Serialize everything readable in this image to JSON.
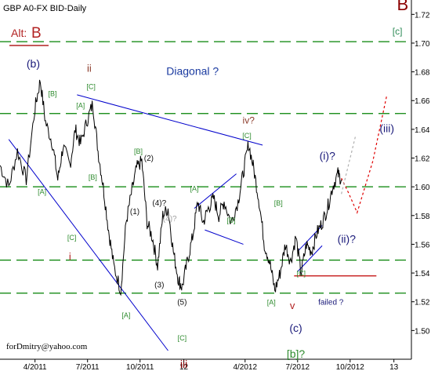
{
  "chart_data": {
    "type": "line",
    "title": "GBP A0-FX BID-Daily",
    "watermark": "forDmitry@yahoo.com",
    "y_axis": {
      "ylim": [
        1.48,
        1.73
      ],
      "ticks": [
        {
          "value": 1.72,
          "label": "1.72"
        },
        {
          "value": 1.7,
          "label": "1.70"
        },
        {
          "value": 1.68,
          "label": "1.68"
        },
        {
          "value": 1.66,
          "label": "1.66"
        },
        {
          "value": 1.64,
          "label": "1.64"
        },
        {
          "value": 1.62,
          "label": "1.62"
        },
        {
          "value": 1.6,
          "label": "1.60"
        },
        {
          "value": 1.58,
          "label": "1.58"
        },
        {
          "value": 1.56,
          "label": "1.56"
        },
        {
          "value": 1.54,
          "label": "1.54"
        },
        {
          "value": 1.52,
          "label": "1.52"
        },
        {
          "value": 1.5,
          "label": "1.50"
        }
      ]
    },
    "x_axis": {
      "xlim": [
        0,
        23.5
      ],
      "ticks": [
        {
          "value": 2.0,
          "label": "4/2011"
        },
        {
          "value": 5.0,
          "label": "7/2011"
        },
        {
          "value": 8.0,
          "label": "10/2011"
        },
        {
          "value": 10.5,
          "label": "12"
        },
        {
          "value": 14.0,
          "label": "4/2012"
        },
        {
          "value": 17.0,
          "label": "7/2012"
        },
        {
          "value": 20.0,
          "label": "10/2012"
        },
        {
          "value": 22.5,
          "label": "13"
        }
      ]
    },
    "price_path": [
      [
        0.0,
        1.615
      ],
      [
        0.5,
        1.6
      ],
      [
        1.0,
        1.625
      ],
      [
        1.5,
        1.605
      ],
      [
        2.0,
        1.655
      ],
      [
        2.3,
        1.674
      ],
      [
        2.6,
        1.645
      ],
      [
        3.0,
        1.63
      ],
      [
        3.3,
        1.605
      ],
      [
        3.6,
        1.628
      ],
      [
        4.0,
        1.615
      ],
      [
        4.3,
        1.64
      ],
      [
        4.6,
        1.63
      ],
      [
        5.0,
        1.647
      ],
      [
        5.3,
        1.658
      ],
      [
        5.6,
        1.625
      ],
      [
        5.9,
        1.6
      ],
      [
        6.2,
        1.57
      ],
      [
        6.5,
        1.545
      ],
      [
        6.9,
        1.528
      ],
      [
        7.2,
        1.575
      ],
      [
        7.5,
        1.595
      ],
      [
        7.8,
        1.613
      ],
      [
        8.1,
        1.618
      ],
      [
        8.4,
        1.575
      ],
      [
        8.7,
        1.565
      ],
      [
        9.0,
        1.545
      ],
      [
        9.3,
        1.58
      ],
      [
        9.6,
        1.585
      ],
      [
        9.9,
        1.555
      ],
      [
        10.2,
        1.535
      ],
      [
        10.4,
        1.53
      ],
      [
        10.7,
        1.548
      ],
      [
        11.0,
        1.565
      ],
      [
        11.3,
        1.59
      ],
      [
        11.6,
        1.575
      ],
      [
        11.9,
        1.585
      ],
      [
        12.2,
        1.592
      ],
      [
        12.5,
        1.58
      ],
      [
        12.8,
        1.59
      ],
      [
        13.2,
        1.575
      ],
      [
        13.6,
        1.59
      ],
      [
        13.9,
        1.61
      ],
      [
        14.2,
        1.63
      ],
      [
        14.5,
        1.612
      ],
      [
        14.8,
        1.59
      ],
      [
        15.1,
        1.56
      ],
      [
        15.4,
        1.548
      ],
      [
        15.7,
        1.528
      ],
      [
        16.0,
        1.54
      ],
      [
        16.3,
        1.56
      ],
      [
        16.6,
        1.548
      ],
      [
        16.9,
        1.565
      ],
      [
        17.2,
        1.54
      ],
      [
        17.5,
        1.56
      ],
      [
        17.8,
        1.555
      ],
      [
        18.1,
        1.568
      ],
      [
        18.4,
        1.575
      ],
      [
        18.7,
        1.585
      ],
      [
        19.0,
        1.6
      ],
      [
        19.3,
        1.609
      ],
      [
        19.5,
        1.605
      ]
    ],
    "horizontal_lines": [
      {
        "y": 1.701,
        "style": "dashed",
        "color": "#008000"
      },
      {
        "y": 1.651,
        "style": "dashed",
        "color": "#008000"
      },
      {
        "y": 1.6,
        "style": "dashed",
        "color": "#008000"
      },
      {
        "y": 1.549,
        "style": "dashed",
        "color": "#008000"
      },
      {
        "y": 1.526,
        "style": "dashed",
        "color": "#008000"
      },
      {
        "y": 1.538,
        "style": "solid",
        "color": "#c00000",
        "x1": 16.8,
        "x2": 21.5
      }
    ],
    "trend_lines": [
      {
        "points": [
          [
            4.4,
            1.664
          ],
          [
            15.0,
            1.629
          ]
        ],
        "color": "#0000cc"
      },
      {
        "points": [
          [
            0.5,
            1.633
          ],
          [
            9.6,
            1.486
          ]
        ],
        "color": "#0000cc"
      },
      {
        "points": [
          [
            11.1,
            1.585
          ],
          [
            13.5,
            1.609
          ]
        ],
        "color": "#0000cc"
      },
      {
        "points": [
          [
            11.7,
            1.57
          ],
          [
            13.9,
            1.56
          ]
        ],
        "color": "#0000cc"
      },
      {
        "points": [
          [
            17.0,
            1.555
          ],
          [
            18.4,
            1.573
          ]
        ],
        "color": "#0000cc"
      },
      {
        "points": [
          [
            17.0,
            1.541
          ],
          [
            18.4,
            1.559
          ]
        ],
        "color": "#0000cc"
      }
    ],
    "projection_lines": [
      {
        "points": [
          [
            19.5,
            1.606
          ],
          [
            19.9,
            1.596
          ],
          [
            20.4,
            1.582
          ],
          [
            21.3,
            1.618
          ],
          [
            22.1,
            1.664
          ]
        ],
        "color": "#e00000",
        "style": "dotted"
      },
      {
        "points": [
          [
            19.5,
            1.595
          ],
          [
            20.3,
            1.635
          ]
        ],
        "color": "#b0b0b0",
        "style": "dotted"
      }
    ],
    "annotations": [
      {
        "text": "B",
        "x": 23.0,
        "y": 1.723,
        "color": "#8b0000",
        "size": 22
      },
      {
        "text": "[c]",
        "x": 22.7,
        "y": 1.706,
        "color": "#2e8b57",
        "size": 12
      },
      {
        "text": "(b)",
        "x": 1.9,
        "y": 1.683,
        "color": "#1a1a7a",
        "size": 14
      },
      {
        "text": "ii",
        "x": 5.1,
        "y": 1.68,
        "color": "#8b3a2a",
        "size": 13
      },
      {
        "text": "Diagonal ?",
        "x": 11.0,
        "y": 1.678,
        "color": "#1a3aa0",
        "size": 14
      },
      {
        "text": "[B]",
        "x": 3.0,
        "y": 1.663,
        "color": "#2e8b2e",
        "size": 9
      },
      {
        "text": "[C]",
        "x": 5.2,
        "y": 1.668,
        "color": "#2e8b2e",
        "size": 9
      },
      {
        "text": "[A]",
        "x": 4.6,
        "y": 1.655,
        "color": "#2e8b2e",
        "size": 9
      },
      {
        "text": "iv?",
        "x": 14.2,
        "y": 1.644,
        "color": "#8b3a2a",
        "size": 12
      },
      {
        "text": "[C]",
        "x": 14.1,
        "y": 1.634,
        "color": "#2e8b2e",
        "size": 9
      },
      {
        "text": "(iii)",
        "x": 22.1,
        "y": 1.638,
        "color": "#1a1a7a",
        "size": 14
      },
      {
        "text": "(i)?",
        "x": 18.7,
        "y": 1.619,
        "color": "#1a1a7a",
        "size": 14
      },
      {
        "text": "[B]",
        "x": 7.9,
        "y": 1.623,
        "color": "#2e8b2e",
        "size": 9
      },
      {
        "text": "(2)",
        "x": 8.5,
        "y": 1.618,
        "color": "#111111",
        "size": 10
      },
      {
        "text": "[B]",
        "x": 5.3,
        "y": 1.605,
        "color": "#2e8b2e",
        "size": 9
      },
      {
        "text": "[A]",
        "x": 2.4,
        "y": 1.595,
        "color": "#2e8b2e",
        "size": 9
      },
      {
        "text": "[A]",
        "x": 11.1,
        "y": 1.597,
        "color": "#2e8b2e",
        "size": 9
      },
      {
        "text": "(1)",
        "x": 7.7,
        "y": 1.581,
        "color": "#111111",
        "size": 10
      },
      {
        "text": "(4)?",
        "x": 9.1,
        "y": 1.587,
        "color": "#111111",
        "size": 10
      },
      {
        "text": "(4)?",
        "x": 9.7,
        "y": 1.576,
        "color": "#a0a0a0",
        "size": 10
      },
      {
        "text": "[B]",
        "x": 15.9,
        "y": 1.587,
        "color": "#2e8b2e",
        "size": 9
      },
      {
        "text": "[B]",
        "x": 13.2,
        "y": 1.575,
        "color": "#2e8b2e",
        "size": 9
      },
      {
        "text": "(ii)?",
        "x": 19.8,
        "y": 1.561,
        "color": "#1a1a7a",
        "size": 14
      },
      {
        "text": "[C]",
        "x": 4.1,
        "y": 1.563,
        "color": "#2e8b2e",
        "size": 9
      },
      {
        "text": "i",
        "x": 4.0,
        "y": 1.549,
        "color": "#b22222",
        "size": 13
      },
      {
        "text": "[C]",
        "x": 17.2,
        "y": 1.538,
        "color": "#2e8b2e",
        "size": 9
      },
      {
        "text": "(3)",
        "x": 9.1,
        "y": 1.53,
        "color": "#111111",
        "size": 10
      },
      {
        "text": "(5)",
        "x": 10.4,
        "y": 1.518,
        "color": "#111111",
        "size": 10
      },
      {
        "text": "[A]",
        "x": 15.5,
        "y": 1.518,
        "color": "#2e8b2e",
        "size": 9
      },
      {
        "text": "v",
        "x": 16.7,
        "y": 1.515,
        "color": "#b22222",
        "size": 13
      },
      {
        "text": "failed ?",
        "x": 18.9,
        "y": 1.518,
        "color": "#1a1a7a",
        "size": 10
      },
      {
        "text": "[A]",
        "x": 7.2,
        "y": 1.509,
        "color": "#2e8b2e",
        "size": 9
      },
      {
        "text": "(c)",
        "x": 16.9,
        "y": 1.499,
        "color": "#1a1a7a",
        "size": 14
      },
      {
        "text": "[C]",
        "x": 10.4,
        "y": 1.493,
        "color": "#2e8b2e",
        "size": 9
      },
      {
        "text": "[b]?",
        "x": 16.9,
        "y": 1.481,
        "color": "#2e8b2e",
        "size": 14
      },
      {
        "text": "iii",
        "x": 10.5,
        "y": 1.474,
        "color": "#8b0000",
        "size": 14
      }
    ],
    "alt_label": {
      "prefix": "Alt:",
      "value": "B"
    },
    "colors": {
      "price": "#000000",
      "axis": "#000000",
      "grid": "#008000"
    }
  }
}
